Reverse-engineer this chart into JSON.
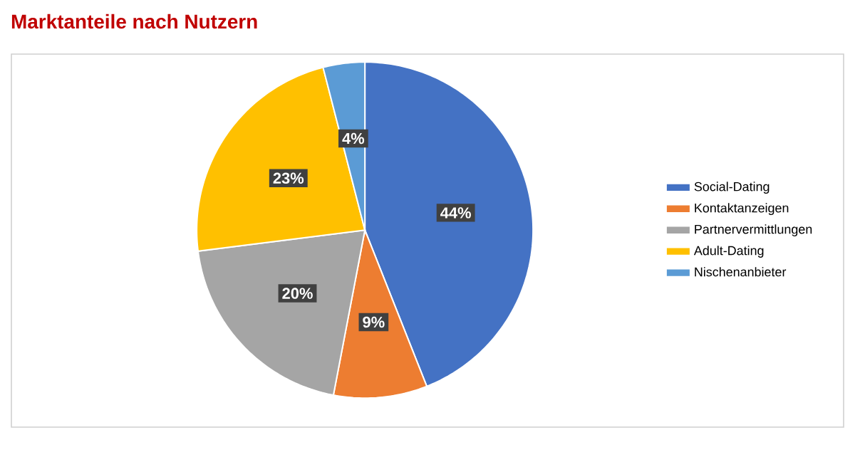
{
  "chart_data": {
    "type": "pie",
    "title": "Marktanteile nach Nutzern",
    "categories": [
      "Social-Dating",
      "Kontaktanzeigen",
      "Partnervermittlungen",
      "Adult-Dating",
      "Nischenanbieter"
    ],
    "values": [
      44,
      9,
      20,
      23,
      4
    ],
    "value_labels": [
      "44%",
      "9%",
      "20%",
      "23%",
      "4%"
    ],
    "colors": [
      "#4472c4",
      "#ed7d31",
      "#a5a5a5",
      "#ffc000",
      "#5b9bd5"
    ],
    "legend": "right"
  }
}
